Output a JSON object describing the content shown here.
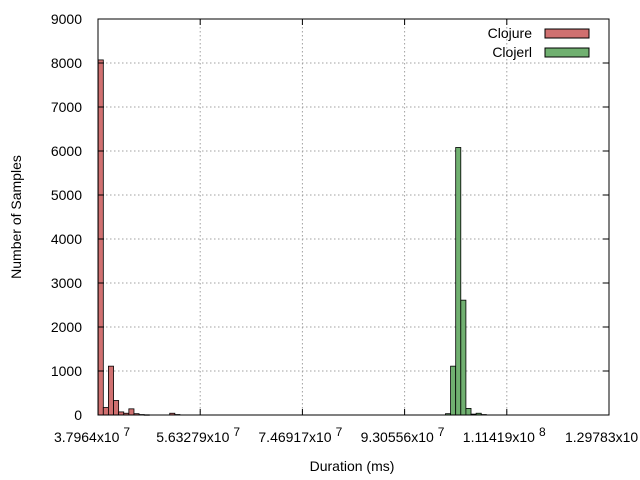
{
  "chart_data": {
    "type": "bar",
    "xlabel": "Duration (ms)",
    "ylabel": "Number of Samples",
    "ylim": [
      0,
      9000
    ],
    "yticks": [
      "0",
      "1000",
      "2000",
      "3000",
      "4000",
      "5000",
      "6000",
      "7000",
      "8000",
      "9000"
    ],
    "xlim": [
      37964000,
      129783000
    ],
    "xticks": [
      {
        "value": 37964000,
        "mantissa": "3.7964x10",
        "exp": "7"
      },
      {
        "value": 56327900,
        "mantissa": "5.63279x10",
        "exp": "7"
      },
      {
        "value": 74691700,
        "mantissa": "7.46917x10",
        "exp": "7"
      },
      {
        "value": 93055600,
        "mantissa": "9.30556x10",
        "exp": "7"
      },
      {
        "value": 111419000,
        "mantissa": "1.11419x10",
        "exp": "8"
      },
      {
        "value": 129783000,
        "mantissa": "1.29783x10",
        "exp": "8"
      }
    ],
    "grid": true,
    "legend_position": "top-right",
    "bin_width": 918000,
    "series": [
      {
        "name": "Clojure",
        "color": "#d07070",
        "bars": [
          {
            "x": 38000000,
            "y": 8070
          },
          {
            "x": 38918000,
            "y": 170
          },
          {
            "x": 39836000,
            "y": 1110
          },
          {
            "x": 40754000,
            "y": 330
          },
          {
            "x": 41672000,
            "y": 70
          },
          {
            "x": 42590000,
            "y": 40
          },
          {
            "x": 43508000,
            "y": 140
          },
          {
            "x": 44426000,
            "y": 30
          },
          {
            "x": 45344000,
            "y": 10
          },
          {
            "x": 46262000,
            "y": 5
          },
          {
            "x": 50853000,
            "y": 40
          },
          {
            "x": 51771000,
            "y": 10
          }
        ]
      },
      {
        "name": "Clojerl",
        "color": "#70b070",
        "bars": [
          {
            "x": 100400000,
            "y": 30
          },
          {
            "x": 101318000,
            "y": 1110
          },
          {
            "x": 102236000,
            "y": 6080
          },
          {
            "x": 103154000,
            "y": 2610
          },
          {
            "x": 104072000,
            "y": 150
          },
          {
            "x": 104990000,
            "y": 20
          },
          {
            "x": 105908000,
            "y": 40
          },
          {
            "x": 106826000,
            "y": 10
          }
        ]
      }
    ]
  }
}
